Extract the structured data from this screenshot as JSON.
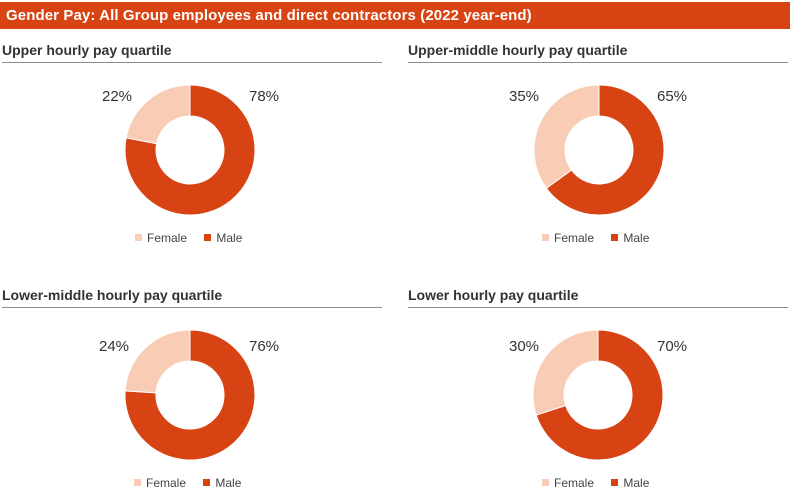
{
  "banner": {
    "title": "Gender Pay: All Group employees and direct contractors (2022 year-end)"
  },
  "colors": {
    "banner": "#d84314",
    "female": "#f9ccb6",
    "male": "#d84314"
  },
  "legend": {
    "female": "Female",
    "male": "Male"
  },
  "chart_data": [
    {
      "type": "pie",
      "title": "Upper hourly pay quartile",
      "categories": [
        "Female",
        "Male"
      ],
      "values": [
        22,
        78
      ],
      "labels": {
        "female": "22%",
        "male": "78%"
      }
    },
    {
      "type": "pie",
      "title": "Upper-middle hourly pay quartile",
      "categories": [
        "Female",
        "Male"
      ],
      "values": [
        35,
        65
      ],
      "labels": {
        "female": "35%",
        "male": "65%"
      }
    },
    {
      "type": "pie",
      "title": "Lower-middle hourly pay quartile",
      "categories": [
        "Female",
        "Male"
      ],
      "values": [
        24,
        76
      ],
      "labels": {
        "female": "24%",
        "male": "76%"
      }
    },
    {
      "type": "pie",
      "title": "Lower hourly pay quartile",
      "categories": [
        "Female",
        "Male"
      ],
      "values": [
        30,
        70
      ],
      "labels": {
        "female": "30%",
        "male": "70%"
      }
    }
  ]
}
